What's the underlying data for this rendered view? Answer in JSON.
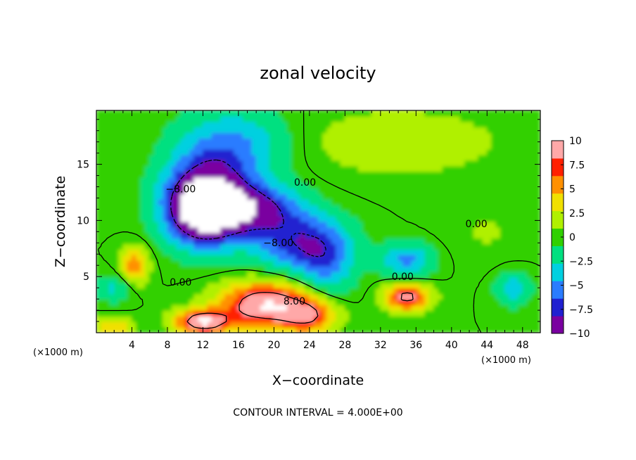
{
  "chart_data": {
    "type": "heatmap",
    "title": "zonal velocity",
    "xlabel": "X−coordinate",
    "ylabel": "Z−coordinate",
    "x_unit_left": "(×1000 m)",
    "x_unit_right": "(×1000 m)",
    "xlim": [
      0,
      50
    ],
    "ylim": [
      0,
      19.8
    ],
    "x_ticks": [
      4,
      8,
      12,
      16,
      20,
      24,
      28,
      32,
      36,
      40,
      44,
      48
    ],
    "x_tick_labels": [
      "4",
      "8",
      "12",
      "16",
      "20",
      "24",
      "28",
      "32",
      "36",
      "40",
      "44",
      "48"
    ],
    "y_ticks": [
      5,
      10,
      15
    ],
    "y_tick_labels": [
      "5",
      "10",
      "15"
    ],
    "colorbar": {
      "range": [
        -10,
        10
      ],
      "ticks": [
        10,
        7.5,
        5,
        2.5,
        0,
        -2.5,
        -5,
        -7.5,
        -10
      ],
      "tick_labels": [
        "10",
        "7.5",
        "5",
        "2.5",
        "0",
        "−2.5",
        "−5",
        "−7.5",
        "−10"
      ],
      "colors": [
        "#7a00a0",
        "#2020d0",
        "#2a7cff",
        "#00d0e0",
        "#00e080",
        "#30d000",
        "#b0f000",
        "#f0e000",
        "#ff9000",
        "#ff2000",
        "#ffa8a8"
      ]
    },
    "contour_labels": [
      {
        "text": "0.00",
        "x": 23.5,
        "z": 13.1
      },
      {
        "text": "0.00",
        "x": 9.5,
        "z": 4.2
      },
      {
        "text": "0.00",
        "x": 34.5,
        "z": 4.7
      },
      {
        "text": "0.00",
        "x": 42.8,
        "z": 9.4
      },
      {
        "text": "8.00",
        "x": 22.3,
        "z": 2.5
      },
      {
        "text": "−8.00",
        "x": 9.5,
        "z": 12.5
      },
      {
        "text": "−8.00",
        "x": 20.5,
        "z": 7.7
      }
    ],
    "grid": false,
    "legend": "right",
    "footer": "CONTOUR INTERVAL =  4.000E+00",
    "field_blobs": [
      {
        "x": 12,
        "z": 11,
        "rx": 4,
        "rz": 3,
        "v": -13
      },
      {
        "x": 13,
        "z": 13,
        "rx": 5,
        "rz": 4,
        "v": -6
      },
      {
        "x": 18,
        "z": 11,
        "rx": 5,
        "rz": 2.2,
        "v": -8
      },
      {
        "x": 23,
        "z": 8,
        "rx": 5,
        "rz": 2.5,
        "v": -7
      },
      {
        "x": 26,
        "z": 6,
        "rx": 3,
        "rz": 3,
        "v": -4
      },
      {
        "x": 16,
        "z": 17,
        "rx": 6,
        "rz": 3,
        "v": -4
      },
      {
        "x": 35,
        "z": 6.5,
        "rx": 3,
        "rz": 1.5,
        "v": -5
      },
      {
        "x": 47,
        "z": 4,
        "rx": 2,
        "rz": 1.5,
        "v": -4
      },
      {
        "x": 2,
        "z": 4,
        "rx": 2,
        "rz": 1.2,
        "v": -3
      },
      {
        "x": 19,
        "z": 2.5,
        "rx": 5,
        "rz": 2,
        "v": 11
      },
      {
        "x": 12,
        "z": 1,
        "rx": 3,
        "rz": 1,
        "v": 11
      },
      {
        "x": 24,
        "z": 1.5,
        "rx": 3,
        "rz": 1.5,
        "v": 7
      },
      {
        "x": 35,
        "z": 3.2,
        "rx": 2.5,
        "rz": 1.2,
        "v": 9
      },
      {
        "x": 4.3,
        "z": 6,
        "rx": 1.5,
        "rz": 1.6,
        "v": 6
      },
      {
        "x": 2,
        "z": 0.5,
        "rx": 2,
        "rz": 0.8,
        "v": 5
      },
      {
        "x": 34,
        "z": 17,
        "rx": 12,
        "rz": 3,
        "v": 2
      },
      {
        "x": 44,
        "z": 9,
        "rx": 5,
        "rz": 3,
        "v": 1
      }
    ]
  }
}
